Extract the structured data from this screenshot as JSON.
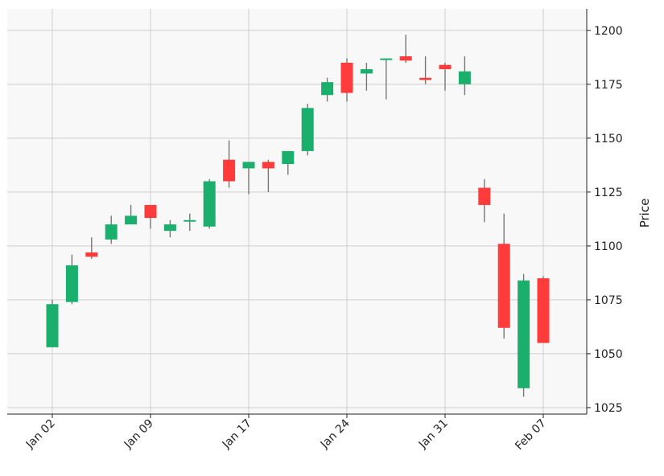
{
  "chart_data": {
    "type": "candlestick",
    "ylabel": "Price",
    "ylim": [
      1022,
      1210
    ],
    "yticks": [
      1025,
      1050,
      1075,
      1100,
      1125,
      1150,
      1175,
      1200
    ],
    "xticks": [
      {
        "label": "Jan 02",
        "index": 0
      },
      {
        "label": "Jan 09",
        "index": 5
      },
      {
        "label": "Jan 17",
        "index": 10
      },
      {
        "label": "Jan 24",
        "index": 15
      },
      {
        "label": "Jan 31",
        "index": 20
      },
      {
        "label": "Feb 07",
        "index": 25
      }
    ],
    "grid": true,
    "colors": {
      "up": "#1aaf6c",
      "down": "#ff3b3b",
      "wick": "#777777"
    },
    "candles": [
      {
        "open": 1053,
        "high": 1075,
        "low": 1053,
        "close": 1073
      },
      {
        "open": 1074,
        "high": 1096,
        "low": 1073,
        "close": 1091
      },
      {
        "open": 1097,
        "high": 1104,
        "low": 1094,
        "close": 1095
      },
      {
        "open": 1103,
        "high": 1114,
        "low": 1101,
        "close": 1110
      },
      {
        "open": 1110,
        "high": 1119,
        "low": 1110,
        "close": 1114
      },
      {
        "open": 1119,
        "high": 1119,
        "low": 1108,
        "close": 1113
      },
      {
        "open": 1107,
        "high": 1112,
        "low": 1104,
        "close": 1110
      },
      {
        "open": 1112,
        "high": 1115,
        "low": 1107,
        "close": 1112
      },
      {
        "open": 1109,
        "high": 1131,
        "low": 1108,
        "close": 1130
      },
      {
        "open": 1140,
        "high": 1149,
        "low": 1127,
        "close": 1130
      },
      {
        "open": 1136,
        "high": 1139,
        "low": 1124,
        "close": 1139
      },
      {
        "open": 1139,
        "high": 1140,
        "low": 1125,
        "close": 1136
      },
      {
        "open": 1138,
        "high": 1144,
        "low": 1133,
        "close": 1144
      },
      {
        "open": 1144,
        "high": 1166,
        "low": 1142,
        "close": 1164
      },
      {
        "open": 1170,
        "high": 1178,
        "low": 1167,
        "close": 1176
      },
      {
        "open": 1185,
        "high": 1187,
        "low": 1167,
        "close": 1171
      },
      {
        "open": 1180,
        "high": 1185,
        "low": 1172,
        "close": 1182
      },
      {
        "open": 1187,
        "high": 1187,
        "low": 1168,
        "close": 1187
      },
      {
        "open": 1188,
        "high": 1198,
        "low": 1185,
        "close": 1186
      },
      {
        "open": 1178,
        "high": 1188,
        "low": 1175,
        "close": 1177
      },
      {
        "open": 1184,
        "high": 1185,
        "low": 1172,
        "close": 1182
      },
      {
        "open": 1175,
        "high": 1188,
        "low": 1170,
        "close": 1181
      },
      {
        "open": 1127,
        "high": 1131,
        "low": 1111,
        "close": 1119
      },
      {
        "open": 1101,
        "high": 1115,
        "low": 1057,
        "close": 1062
      },
      {
        "open": 1034,
        "high": 1087,
        "low": 1030,
        "close": 1084
      },
      {
        "open": 1085,
        "high": 1086,
        "low": 1055,
        "close": 1055
      }
    ]
  }
}
